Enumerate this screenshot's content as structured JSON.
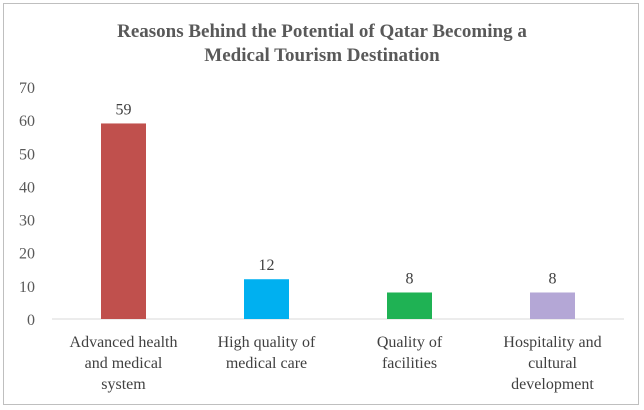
{
  "chart_data": {
    "type": "bar",
    "title_lines": [
      "Reasons Behind the Potential of Qatar Becoming a",
      "Medical Tourism Destination"
    ],
    "categories": [
      [
        "Advanced health",
        "and medical",
        "system"
      ],
      [
        "High quality of",
        "medical care"
      ],
      [
        "Quality of",
        "facilities"
      ],
      [
        "Hospitality and",
        "cultural",
        "development"
      ]
    ],
    "values": [
      59,
      12,
      8,
      8
    ],
    "colors": [
      "#c0504d",
      "#00b0f0",
      "#1fb254",
      "#b4a7d6"
    ],
    "ylim": [
      0,
      70
    ],
    "yticks": [
      0,
      10,
      20,
      30,
      40,
      50,
      60,
      70
    ],
    "grid": false,
    "legend": "none",
    "xlabel": "",
    "ylabel": ""
  }
}
